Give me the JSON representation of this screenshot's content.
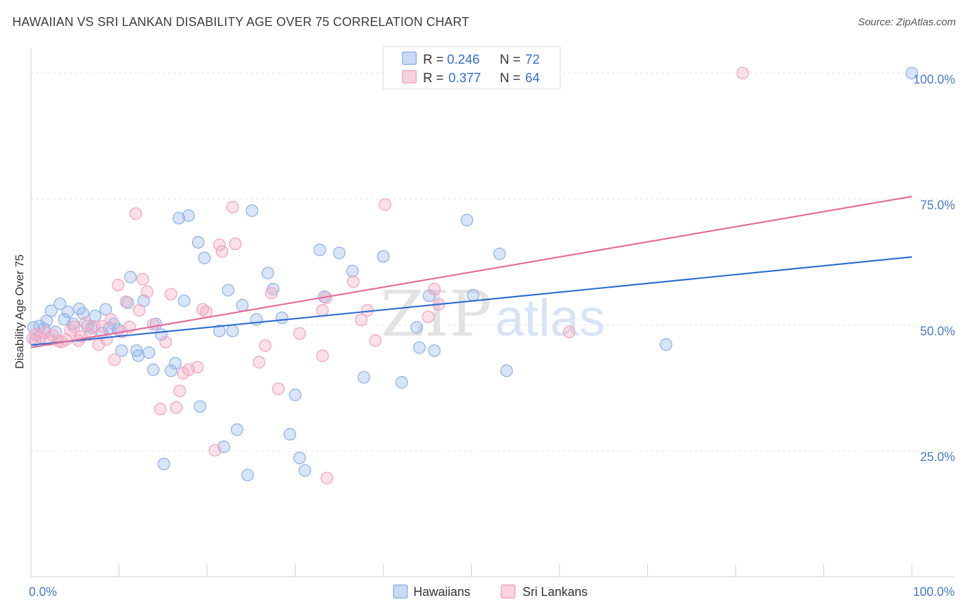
{
  "title": "HAWAIIAN VS SRI LANKAN DISABILITY AGE OVER 75 CORRELATION CHART",
  "source": "Source: ZipAtlas.com",
  "watermark": {
    "part1": "ZIP",
    "part2": "atlas"
  },
  "legend": {
    "rows": [
      {
        "r_label": "R =",
        "r_value": "0.246",
        "n_label": "N =",
        "n_value": "72",
        "color": "#8fb4e8"
      },
      {
        "r_label": "R =",
        "r_value": "0.377",
        "n_label": "N =",
        "n_value": "64",
        "color": "#f2a5bf"
      }
    ]
  },
  "bottom_legend": [
    {
      "label": "Hawaiians",
      "color": "#8fb4e8"
    },
    {
      "label": "Sri Lankans",
      "color": "#f2a5bf"
    }
  ],
  "chart_data": {
    "type": "scatter",
    "ylabel": "Disability Age Over 75",
    "xlim": [
      0,
      100
    ],
    "ylim": [
      0,
      105
    ],
    "x_tick_labels": [
      {
        "value": 0,
        "label": "0.0%"
      },
      {
        "value": 100,
        "label": "100.0%"
      }
    ],
    "y_tick_labels": [
      {
        "value": 25,
        "label": "25.0%"
      },
      {
        "value": 50,
        "label": "50.0%"
      },
      {
        "value": 75,
        "label": "75.0%"
      },
      {
        "value": 100,
        "label": "100.0%"
      }
    ],
    "grid": true,
    "series": [
      {
        "name": "Hawaiians",
        "color": "#8fb4e8",
        "line_color": "#2f6fd1",
        "trend": {
          "x": [
            0,
            100
          ],
          "y": [
            46.0,
            63.5
          ]
        },
        "points": [
          [
            0.3,
            49.5
          ],
          [
            0.5,
            47
          ],
          [
            1,
            49.8
          ],
          [
            1.5,
            49.2
          ],
          [
            1.8,
            50.8
          ],
          [
            2.3,
            52.8
          ],
          [
            2.8,
            48.6
          ],
          [
            3.3,
            54.2
          ],
          [
            3.8,
            51.1
          ],
          [
            4.2,
            52.6
          ],
          [
            4.8,
            50.2
          ],
          [
            5.5,
            53.2
          ],
          [
            5.9,
            52.3
          ],
          [
            6.4,
            49.8
          ],
          [
            6.9,
            49.4
          ],
          [
            7.3,
            51.8
          ],
          [
            8.1,
            48.4
          ],
          [
            8.5,
            53.1
          ],
          [
            8.9,
            49.4
          ],
          [
            9.4,
            50.2
          ],
          [
            9.9,
            49.1
          ],
          [
            10.3,
            44.9
          ],
          [
            11,
            54.4
          ],
          [
            11.3,
            59.5
          ],
          [
            12,
            44.9
          ],
          [
            12.2,
            43.9
          ],
          [
            12.8,
            54.8
          ],
          [
            13.4,
            44.5
          ],
          [
            13.9,
            41.1
          ],
          [
            14.2,
            50.2
          ],
          [
            14.8,
            48.1
          ],
          [
            15.1,
            22.4
          ],
          [
            15.9,
            40.9
          ],
          [
            16.4,
            42.4
          ],
          [
            16.8,
            71.2
          ],
          [
            17.4,
            54.8
          ],
          [
            17.9,
            71.7
          ],
          [
            19,
            66.4
          ],
          [
            19.2,
            33.8
          ],
          [
            19.7,
            63.3
          ],
          [
            21.4,
            48.8
          ],
          [
            21.9,
            25.8
          ],
          [
            22.4,
            56.9
          ],
          [
            22.9,
            48.8
          ],
          [
            23.4,
            29.2
          ],
          [
            24,
            53.9
          ],
          [
            24.6,
            20.2
          ],
          [
            25.1,
            72.7
          ],
          [
            25.6,
            51.1
          ],
          [
            26.9,
            60.3
          ],
          [
            27.5,
            57.1
          ],
          [
            28.5,
            51.4
          ],
          [
            29.4,
            28.3
          ],
          [
            30,
            36.1
          ],
          [
            30.5,
            23.6
          ],
          [
            31.1,
            21.1
          ],
          [
            32.8,
            64.9
          ],
          [
            33.3,
            55.6
          ],
          [
            35,
            64.3
          ],
          [
            36.5,
            60.7
          ],
          [
            37.8,
            39.6
          ],
          [
            40,
            63.6
          ],
          [
            42.1,
            38.6
          ],
          [
            43.8,
            49.5
          ],
          [
            44.1,
            45.5
          ],
          [
            45.2,
            55.8
          ],
          [
            45.8,
            44.9
          ],
          [
            49.5,
            70.8
          ],
          [
            50.2,
            55.9
          ],
          [
            53.2,
            64.1
          ],
          [
            54,
            40.9
          ],
          [
            72.1,
            46.1
          ],
          [
            100,
            100
          ]
        ]
      },
      {
        "name": "Sri Lankans",
        "color": "#f2a5bf",
        "line_color": "#e36c97",
        "trend": {
          "x": [
            0,
            100
          ],
          "y": [
            45.5,
            75.5
          ]
        },
        "points": [
          [
            0.2,
            47.3
          ],
          [
            0.6,
            48.1
          ],
          [
            1.1,
            47.6
          ],
          [
            1.6,
            48.5
          ],
          [
            2.1,
            47.1
          ],
          [
            2.5,
            47.9
          ],
          [
            3.1,
            46.8
          ],
          [
            3.5,
            46.6
          ],
          [
            4,
            47.1
          ],
          [
            4.5,
            48.9
          ],
          [
            4.9,
            49.6
          ],
          [
            5.4,
            46.9
          ],
          [
            5.7,
            47.7
          ],
          [
            6.2,
            50.4
          ],
          [
            6.7,
            48.1
          ],
          [
            7.2,
            49.7
          ],
          [
            7.7,
            46.1
          ],
          [
            8.1,
            49.7
          ],
          [
            8.6,
            47.1
          ],
          [
            9.1,
            51.1
          ],
          [
            9.5,
            43.1
          ],
          [
            9.9,
            57.9
          ],
          [
            10.3,
            48.6
          ],
          [
            10.8,
            54.6
          ],
          [
            11.2,
            49.6
          ],
          [
            11.9,
            72.1
          ],
          [
            12.3,
            52.9
          ],
          [
            12.7,
            59.1
          ],
          [
            13.2,
            56.6
          ],
          [
            13.9,
            50.1
          ],
          [
            14.7,
            33.3
          ],
          [
            15.3,
            46.6
          ],
          [
            15.9,
            56.1
          ],
          [
            16.5,
            33.6
          ],
          [
            16.9,
            36.9
          ],
          [
            17.3,
            40.4
          ],
          [
            17.9,
            41.1
          ],
          [
            18.9,
            41.6
          ],
          [
            19.5,
            53.1
          ],
          [
            19.9,
            52.6
          ],
          [
            20.9,
            25.1
          ],
          [
            21.4,
            65.9
          ],
          [
            21.7,
            64.6
          ],
          [
            22.9,
            73.4
          ],
          [
            23.2,
            66.1
          ],
          [
            25.9,
            42.6
          ],
          [
            26.6,
            45.9
          ],
          [
            27.3,
            56.3
          ],
          [
            28.1,
            37.3
          ],
          [
            30.5,
            48.3
          ],
          [
            33.1,
            43.9
          ],
          [
            33.6,
            19.6
          ],
          [
            33.1,
            52.9
          ],
          [
            33.5,
            55.4
          ],
          [
            36.6,
            58.6
          ],
          [
            38.2,
            52.9
          ],
          [
            39.1,
            46.9
          ],
          [
            40.2,
            73.9
          ],
          [
            45.1,
            51.6
          ],
          [
            45.8,
            57.1
          ],
          [
            46.3,
            54.1
          ],
          [
            61.1,
            48.6
          ],
          [
            80.8,
            100
          ],
          [
            37.5,
            51.0
          ]
        ]
      }
    ]
  }
}
